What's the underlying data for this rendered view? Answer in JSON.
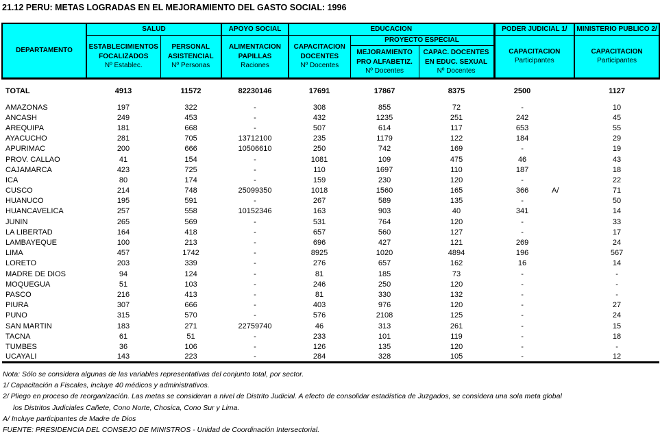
{
  "title": "21.12 PERU: METAS LOGRADAS EN EL MEJORAMIENTO DEL GASTO SOCIAL: 1996",
  "colors": {
    "header_bg": "#00FFFF",
    "border": "#000000",
    "text": "#000000"
  },
  "table": {
    "header": {
      "departamento": "DEPARTAMENTO",
      "groups": {
        "salud": "SALUD",
        "apoyo_social": "APOYO SOCIAL",
        "educacion": "EDUCACION",
        "proyecto_especial": "PROYECTO ESPECIAL",
        "poder_judicial": "PODER JUDICIAL 1/",
        "ministerio_publico": "MINISTERIO PUBLICO 2/"
      },
      "columns": [
        {
          "label": "ESTABLECIMIENTOS\nFOCALIZADOS",
          "unit": "Nº Establec."
        },
        {
          "label": "PERSONAL\nASISTENCIAL",
          "unit": "Nº Personas"
        },
        {
          "label": "ALIMENTACION\nPAPILLAS",
          "unit": "Raciones"
        },
        {
          "label": "CAPACITACION\nDOCENTES",
          "unit": "Nº Docentes"
        },
        {
          "label": "MEJORAMIENTO\nPRO ALFABETIZ.",
          "unit": "Nº Docentes"
        },
        {
          "label": "CAPAC. DOCENTES\nEN EDUC. SEXUAL",
          "unit": "Nº Docentes"
        },
        {
          "label": "CAPACITACION",
          "unit": "Participantes"
        },
        {
          "label": "CAPACITACION",
          "unit": "Participantes"
        }
      ]
    },
    "rows": [
      {
        "total": true,
        "cells": [
          "TOTAL",
          "4913",
          "11572",
          "82230146",
          "17691",
          "17867",
          "8375",
          "2500",
          "1127"
        ]
      },
      {
        "cells": [
          "AMAZONAS",
          "197",
          "322",
          "-",
          "308",
          "855",
          "72",
          "-",
          "10"
        ]
      },
      {
        "cells": [
          "ANCASH",
          "249",
          "453",
          "-",
          "432",
          "1235",
          "251",
          "242",
          "45"
        ]
      },
      {
        "cells": [
          "AREQUIPA",
          "181",
          "668",
          "-",
          "507",
          "614",
          "117",
          "653",
          "55"
        ]
      },
      {
        "cells": [
          "AYACUCHO",
          "281",
          "705",
          "13712100",
          "235",
          "1179",
          "122",
          "184",
          "29"
        ]
      },
      {
        "cells": [
          "APURIMAC",
          "200",
          "666",
          "10506610",
          "250",
          "742",
          "169",
          "-",
          "19"
        ]
      },
      {
        "cells": [
          "PROV. CALLAO",
          "41",
          "154",
          "-",
          "1081",
          "109",
          "475",
          "46",
          "43"
        ]
      },
      {
        "cells": [
          "CAJAMARCA",
          "423",
          "725",
          "-",
          "110",
          "1697",
          "110",
          "187",
          "18"
        ]
      },
      {
        "cells": [
          "ICA",
          "80",
          "174",
          "-",
          "159",
          "230",
          "120",
          "-",
          "22"
        ]
      },
      {
        "cells": [
          "CUSCO",
          "214",
          "748",
          "25099350",
          "1018",
          "1560",
          "165",
          "366",
          "71"
        ],
        "note": "A/"
      },
      {
        "cells": [
          "HUANUCO",
          "195",
          "591",
          "-",
          "267",
          "589",
          "135",
          "-",
          "50"
        ]
      },
      {
        "cells": [
          "HUANCAVELICA",
          "257",
          "558",
          "10152346",
          "163",
          "903",
          "40",
          "341",
          "14"
        ]
      },
      {
        "cells": [
          "JUNIN",
          "265",
          "569",
          "-",
          "531",
          "764",
          "120",
          "-",
          "33"
        ]
      },
      {
        "cells": [
          "LA LIBERTAD",
          "164",
          "418",
          "-",
          "657",
          "560",
          "127",
          "-",
          "17"
        ]
      },
      {
        "cells": [
          "LAMBAYEQUE",
          "100",
          "213",
          "-",
          "696",
          "427",
          "121",
          "269",
          "24"
        ]
      },
      {
        "cells": [
          "LIMA",
          "457",
          "1742",
          "-",
          "8925",
          "1020",
          "4894",
          "196",
          "567"
        ]
      },
      {
        "cells": [
          "LORETO",
          "203",
          "339",
          "-",
          "276",
          "657",
          "162",
          "16",
          "14"
        ]
      },
      {
        "cells": [
          "MADRE DE DIOS",
          "94",
          "124",
          "-",
          "81",
          "185",
          "73",
          "-",
          "-"
        ]
      },
      {
        "cells": [
          "MOQUEGUA",
          "51",
          "103",
          "-",
          "246",
          "250",
          "120",
          "-",
          "-"
        ]
      },
      {
        "cells": [
          "PASCO",
          "216",
          "413",
          "-",
          "81",
          "330",
          "132",
          "-",
          "-"
        ]
      },
      {
        "cells": [
          "PIURA",
          "307",
          "666",
          "-",
          "403",
          "976",
          "120",
          "-",
          "27"
        ]
      },
      {
        "cells": [
          "PUNO",
          "315",
          "570",
          "-",
          "576",
          "2108",
          "125",
          "-",
          "24"
        ]
      },
      {
        "cells": [
          "SAN MARTIN",
          "183",
          "271",
          "22759740",
          "46",
          "313",
          "261",
          "-",
          "15"
        ]
      },
      {
        "cells": [
          "TACNA",
          "61",
          "51",
          "-",
          "233",
          "101",
          "119",
          "-",
          "18"
        ]
      },
      {
        "cells": [
          "TUMBES",
          "36",
          "106",
          "-",
          "126",
          "135",
          "120",
          "-",
          "-"
        ]
      },
      {
        "cells": [
          "UCAYALI",
          "143",
          "223",
          "-",
          "284",
          "328",
          "105",
          "-",
          "12"
        ]
      }
    ]
  },
  "notes": [
    "Nota:   Sólo se considera algunas de las variables representativas del conjunto total,  por sector.",
    "1/  Capacitación a Fiscales, incluye 40 médicos y administrativos.",
    "2/  Pliego en proceso de reorganización.  Las metas se consideran a nivel de Distrito Judicial.  A efecto de consolidar estadística de Juzgados, se considera una sola meta global",
    "los Distritos Judiciales Cañete, Cono Norte, Chosica, Cono Sur y Lima.",
    "A/  Incluye participantes de Madre de Dios",
    "FUENTE:  PRESIDENCIA DEL CONSEJO DE MINISTROS - Unidad de Coordinación Intersectorial."
  ]
}
